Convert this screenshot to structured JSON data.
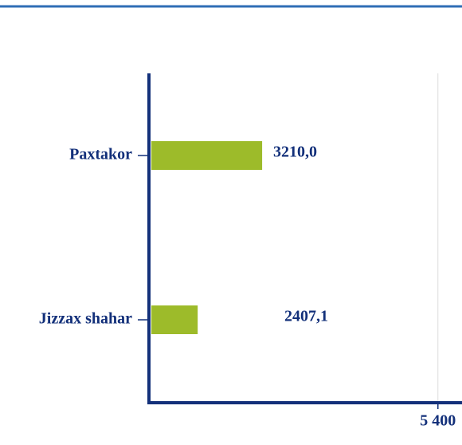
{
  "chart_data": {
    "type": "barh",
    "categories": [
      "Paxtakor",
      "Jizzax shahar"
    ],
    "values": [
      3210.0,
      2407.1
    ],
    "value_labels": [
      "3210,0",
      "2407,1"
    ],
    "color": "#9dbb2a",
    "xlim": [
      1800,
      5700
    ],
    "xticks": [
      {
        "value": 5400,
        "label": "5 400"
      }
    ],
    "grid": true
  }
}
